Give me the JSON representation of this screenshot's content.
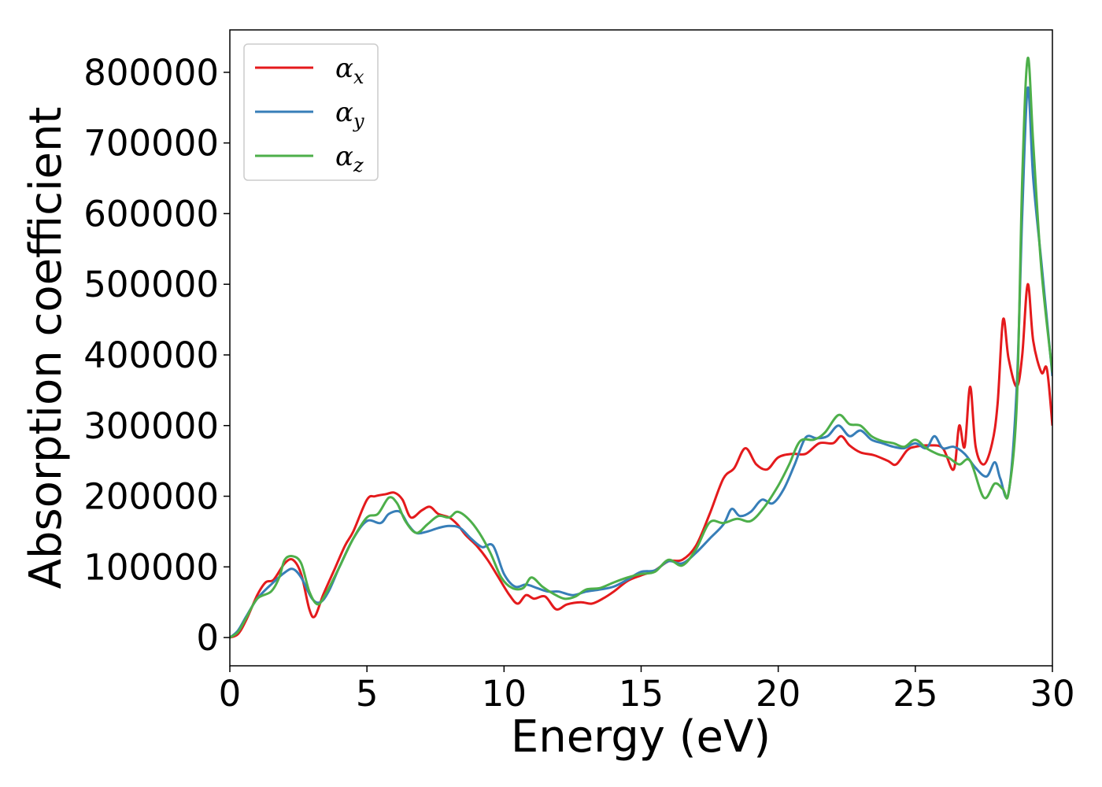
{
  "chart_data": {
    "type": "line",
    "title": "",
    "xlabel": "Energy (eV)",
    "ylabel": "Absorption coefficient",
    "xlim": [
      0,
      30
    ],
    "ylim": [
      -40000,
      860000
    ],
    "xticks": [
      0,
      5,
      10,
      15,
      20,
      25,
      30
    ],
    "yticks": [
      0,
      100000,
      200000,
      300000,
      400000,
      500000,
      600000,
      700000,
      800000
    ],
    "xtick_labels": [
      "0",
      "5",
      "10",
      "15",
      "20",
      "25",
      "30"
    ],
    "ytick_labels": [
      "0",
      "100000",
      "200000",
      "300000",
      "400000",
      "500000",
      "600000",
      "700000",
      "800000"
    ],
    "grid": false,
    "legend_placement": "top-left",
    "series": [
      {
        "name": "α",
        "subscript": "x",
        "color": "#e41a1c",
        "points": [
          [
            0,
            0
          ],
          [
            0.3,
            5000
          ],
          [
            0.6,
            25000
          ],
          [
            1.0,
            60000
          ],
          [
            1.3,
            78000
          ],
          [
            1.6,
            82000
          ],
          [
            2.0,
            105000
          ],
          [
            2.3,
            110000
          ],
          [
            2.6,
            90000
          ],
          [
            2.9,
            40000
          ],
          [
            3.1,
            30000
          ],
          [
            3.4,
            60000
          ],
          [
            3.8,
            95000
          ],
          [
            4.2,
            130000
          ],
          [
            4.5,
            150000
          ],
          [
            5.0,
            195000
          ],
          [
            5.3,
            200000
          ],
          [
            5.7,
            203000
          ],
          [
            6.0,
            205000
          ],
          [
            6.3,
            195000
          ],
          [
            6.6,
            170000
          ],
          [
            7.0,
            180000
          ],
          [
            7.3,
            185000
          ],
          [
            7.6,
            175000
          ],
          [
            8.0,
            170000
          ],
          [
            8.3,
            160000
          ],
          [
            8.6,
            145000
          ],
          [
            9.0,
            130000
          ],
          [
            9.4,
            110000
          ],
          [
            9.8,
            85000
          ],
          [
            10.2,
            60000
          ],
          [
            10.5,
            48000
          ],
          [
            10.8,
            60000
          ],
          [
            11.1,
            55000
          ],
          [
            11.5,
            58000
          ],
          [
            11.9,
            40000
          ],
          [
            12.3,
            47000
          ],
          [
            12.8,
            50000
          ],
          [
            13.2,
            48000
          ],
          [
            13.6,
            55000
          ],
          [
            14.0,
            65000
          ],
          [
            14.5,
            80000
          ],
          [
            15.0,
            88000
          ],
          [
            15.5,
            95000
          ],
          [
            16.0,
            108000
          ],
          [
            16.5,
            110000
          ],
          [
            17.0,
            130000
          ],
          [
            17.5,
            175000
          ],
          [
            18.0,
            225000
          ],
          [
            18.4,
            240000
          ],
          [
            18.8,
            268000
          ],
          [
            19.2,
            245000
          ],
          [
            19.6,
            238000
          ],
          [
            20.0,
            255000
          ],
          [
            20.5,
            260000
          ],
          [
            21.0,
            260000
          ],
          [
            21.5,
            275000
          ],
          [
            22.0,
            275000
          ],
          [
            22.3,
            285000
          ],
          [
            22.6,
            272000
          ],
          [
            23.0,
            262000
          ],
          [
            23.5,
            258000
          ],
          [
            24.0,
            250000
          ],
          [
            24.3,
            245000
          ],
          [
            24.7,
            265000
          ],
          [
            25.0,
            270000
          ],
          [
            25.5,
            272000
          ],
          [
            26.0,
            268000
          ],
          [
            26.4,
            238000
          ],
          [
            26.6,
            300000
          ],
          [
            26.8,
            270000
          ],
          [
            27.0,
            355000
          ],
          [
            27.2,
            270000
          ],
          [
            27.5,
            245000
          ],
          [
            27.8,
            275000
          ],
          [
            28.0,
            330000
          ],
          [
            28.2,
            450000
          ],
          [
            28.4,
            395000
          ],
          [
            28.7,
            355000
          ],
          [
            28.9,
            400000
          ],
          [
            29.1,
            500000
          ],
          [
            29.3,
            420000
          ],
          [
            29.6,
            375000
          ],
          [
            29.8,
            380000
          ],
          [
            30.0,
            300000
          ]
        ]
      },
      {
        "name": "α",
        "subscript": "y",
        "color": "#377eb8",
        "points": [
          [
            0,
            0
          ],
          [
            0.3,
            10000
          ],
          [
            0.6,
            30000
          ],
          [
            1.0,
            55000
          ],
          [
            1.5,
            75000
          ],
          [
            2.0,
            92000
          ],
          [
            2.3,
            97000
          ],
          [
            2.6,
            85000
          ],
          [
            3.0,
            55000
          ],
          [
            3.3,
            50000
          ],
          [
            3.6,
            65000
          ],
          [
            4.0,
            100000
          ],
          [
            4.5,
            140000
          ],
          [
            5.0,
            165000
          ],
          [
            5.5,
            162000
          ],
          [
            5.8,
            175000
          ],
          [
            6.2,
            178000
          ],
          [
            6.5,
            160000
          ],
          [
            6.8,
            148000
          ],
          [
            7.2,
            150000
          ],
          [
            7.6,
            155000
          ],
          [
            8.0,
            158000
          ],
          [
            8.4,
            155000
          ],
          [
            8.8,
            140000
          ],
          [
            9.2,
            128000
          ],
          [
            9.6,
            130000
          ],
          [
            10.0,
            90000
          ],
          [
            10.4,
            72000
          ],
          [
            10.8,
            75000
          ],
          [
            11.2,
            70000
          ],
          [
            11.6,
            65000
          ],
          [
            12.0,
            65000
          ],
          [
            12.5,
            60000
          ],
          [
            13.0,
            65000
          ],
          [
            13.5,
            68000
          ],
          [
            14.0,
            72000
          ],
          [
            14.5,
            82000
          ],
          [
            15.0,
            93000
          ],
          [
            15.5,
            95000
          ],
          [
            16.0,
            108000
          ],
          [
            16.5,
            105000
          ],
          [
            17.0,
            120000
          ],
          [
            17.5,
            140000
          ],
          [
            18.0,
            160000
          ],
          [
            18.3,
            182000
          ],
          [
            18.6,
            172000
          ],
          [
            19.0,
            178000
          ],
          [
            19.4,
            195000
          ],
          [
            19.8,
            190000
          ],
          [
            20.2,
            210000
          ],
          [
            20.6,
            245000
          ],
          [
            21.0,
            283000
          ],
          [
            21.4,
            282000
          ],
          [
            21.8,
            285000
          ],
          [
            22.2,
            300000
          ],
          [
            22.6,
            285000
          ],
          [
            23.0,
            293000
          ],
          [
            23.4,
            280000
          ],
          [
            23.8,
            275000
          ],
          [
            24.2,
            270000
          ],
          [
            24.6,
            268000
          ],
          [
            25.0,
            275000
          ],
          [
            25.4,
            268000
          ],
          [
            25.7,
            285000
          ],
          [
            26.0,
            268000
          ],
          [
            26.4,
            270000
          ],
          [
            26.8,
            260000
          ],
          [
            27.2,
            240000
          ],
          [
            27.6,
            228000
          ],
          [
            27.9,
            248000
          ],
          [
            28.1,
            225000
          ],
          [
            28.4,
            205000
          ],
          [
            28.7,
            355000
          ],
          [
            28.9,
            600000
          ],
          [
            29.1,
            778000
          ],
          [
            29.3,
            650000
          ],
          [
            29.6,
            530000
          ],
          [
            30.0,
            370000
          ]
        ]
      },
      {
        "name": "α",
        "subscript": "z",
        "color": "#4daf4a",
        "points": [
          [
            0,
            0
          ],
          [
            0.3,
            8000
          ],
          [
            0.6,
            28000
          ],
          [
            1.0,
            55000
          ],
          [
            1.5,
            65000
          ],
          [
            1.8,
            85000
          ],
          [
            2.0,
            110000
          ],
          [
            2.3,
            115000
          ],
          [
            2.6,
            105000
          ],
          [
            2.9,
            65000
          ],
          [
            3.2,
            47000
          ],
          [
            3.5,
            62000
          ],
          [
            4.0,
            100000
          ],
          [
            4.5,
            140000
          ],
          [
            5.0,
            170000
          ],
          [
            5.4,
            175000
          ],
          [
            5.8,
            198000
          ],
          [
            6.1,
            190000
          ],
          [
            6.4,
            165000
          ],
          [
            6.8,
            148000
          ],
          [
            7.2,
            160000
          ],
          [
            7.6,
            172000
          ],
          [
            8.0,
            170000
          ],
          [
            8.3,
            178000
          ],
          [
            8.7,
            168000
          ],
          [
            9.1,
            148000
          ],
          [
            9.5,
            120000
          ],
          [
            9.9,
            85000
          ],
          [
            10.3,
            70000
          ],
          [
            10.7,
            70000
          ],
          [
            11.0,
            85000
          ],
          [
            11.4,
            72000
          ],
          [
            11.8,
            62000
          ],
          [
            12.2,
            55000
          ],
          [
            12.6,
            58000
          ],
          [
            13.0,
            68000
          ],
          [
            13.5,
            70000
          ],
          [
            14.0,
            78000
          ],
          [
            14.5,
            85000
          ],
          [
            15.0,
            90000
          ],
          [
            15.5,
            93000
          ],
          [
            16.0,
            110000
          ],
          [
            16.5,
            102000
          ],
          [
            17.0,
            125000
          ],
          [
            17.5,
            163000
          ],
          [
            18.0,
            162000
          ],
          [
            18.5,
            168000
          ],
          [
            19.0,
            165000
          ],
          [
            19.5,
            185000
          ],
          [
            20.0,
            215000
          ],
          [
            20.4,
            245000
          ],
          [
            20.8,
            278000
          ],
          [
            21.3,
            280000
          ],
          [
            21.7,
            290000
          ],
          [
            22.2,
            315000
          ],
          [
            22.6,
            302000
          ],
          [
            23.0,
            300000
          ],
          [
            23.4,
            285000
          ],
          [
            23.8,
            278000
          ],
          [
            24.2,
            275000
          ],
          [
            24.6,
            270000
          ],
          [
            25.0,
            280000
          ],
          [
            25.4,
            268000
          ],
          [
            25.8,
            260000
          ],
          [
            26.2,
            255000
          ],
          [
            26.6,
            245000
          ],
          [
            27.0,
            250000
          ],
          [
            27.5,
            198000
          ],
          [
            27.9,
            218000
          ],
          [
            28.2,
            210000
          ],
          [
            28.4,
            205000
          ],
          [
            28.7,
            330000
          ],
          [
            28.9,
            650000
          ],
          [
            29.1,
            820000
          ],
          [
            29.3,
            700000
          ],
          [
            29.6,
            520000
          ],
          [
            30.0,
            375000
          ]
        ]
      }
    ]
  }
}
